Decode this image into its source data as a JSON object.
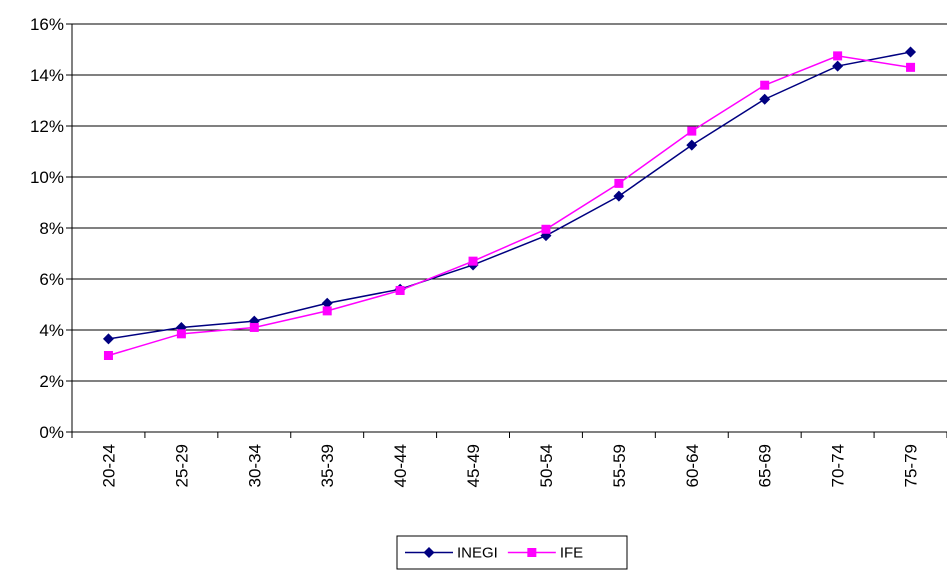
{
  "chart_data": {
    "type": "line",
    "categories": [
      "20-24",
      "25-29",
      "30-34",
      "35-39",
      "40-44",
      "45-49",
      "50-54",
      "55-59",
      "60-64",
      "65-69",
      "70-74",
      "75-79"
    ],
    "ylim": [
      0,
      16
    ],
    "yticks": [
      "0%",
      "2%",
      "4%",
      "6%",
      "8%",
      "10%",
      "12%",
      "14%",
      "16%"
    ],
    "grid": "horizontal",
    "legend_position": "bottom",
    "series": [
      {
        "name": "INEGI",
        "color": "#000080",
        "marker": "diamond",
        "values": [
          3.65,
          4.1,
          4.35,
          5.05,
          5.6,
          6.55,
          7.7,
          9.25,
          11.25,
          13.05,
          14.35,
          14.9
        ]
      },
      {
        "name": "IFE",
        "color": "#ff00ff",
        "marker": "square",
        "values": [
          3.0,
          3.85,
          4.1,
          4.75,
          5.55,
          6.7,
          7.95,
          9.75,
          11.8,
          13.6,
          14.75,
          14.3
        ]
      }
    ]
  }
}
